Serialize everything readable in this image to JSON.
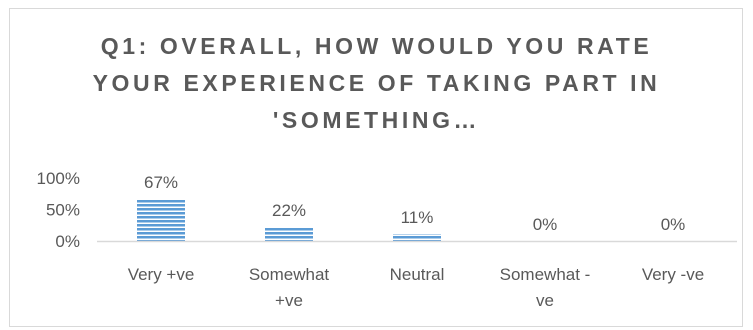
{
  "chart_data": {
    "type": "bar",
    "title": "Q1: OVERALL, HOW WOULD YOU RATE YOUR EXPERIENCE OF TAKING PART IN 'SOMETHING…",
    "categories": [
      "Very +ve",
      "Somewhat +ve",
      "Neutral",
      "Somewhat -ve",
      "Very -ve"
    ],
    "category_lines": [
      [
        "Very +ve"
      ],
      [
        "Somewhat",
        "+ve"
      ],
      [
        "Neutral"
      ],
      [
        "Somewhat -",
        "ve"
      ],
      [
        "Very -ve"
      ]
    ],
    "values": [
      67,
      22,
      11,
      0,
      0
    ],
    "data_labels": [
      "67%",
      "22%",
      "11%",
      "0%",
      "0%"
    ],
    "y_ticks": [
      0,
      50,
      100
    ],
    "y_tick_labels": [
      "0%",
      "50%",
      "100%"
    ],
    "ylim": [
      0,
      100
    ],
    "xlabel": "",
    "ylabel": "",
    "grid": false,
    "legend": "none",
    "bar_color": "#5b9bd5",
    "bar_stripe_color": "#ffffff",
    "text_color": "#595959",
    "axis_color": "#d9d9d9"
  }
}
